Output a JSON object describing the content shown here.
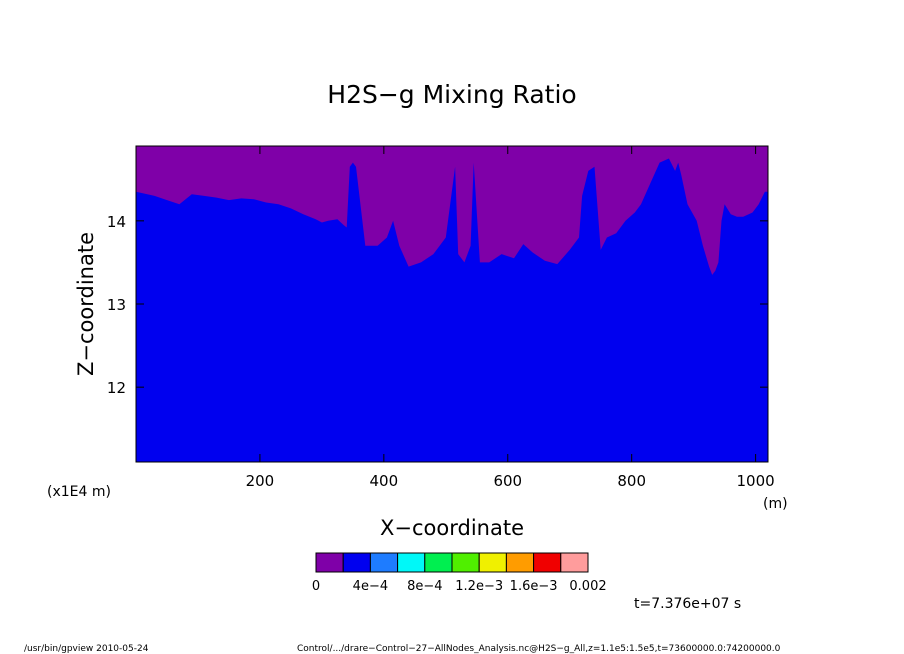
{
  "chart_data": {
    "type": "heatmap",
    "title": "H2S−g Mixing Ratio",
    "xlabel": "X−coordinate",
    "ylabel": "Z−coordinate",
    "x_unit": "(m)",
    "y_unit": "(x1E4 m)",
    "xlim": [
      0,
      1020
    ],
    "ylim": [
      11.1,
      14.9
    ],
    "x_ticks": [
      200,
      400,
      600,
      800,
      1000
    ],
    "y_ticks": [
      12,
      13,
      14
    ],
    "x_tick_labels": [
      "200",
      "400",
      "600",
      "800",
      "1000"
    ],
    "y_tick_labels": [
      "12",
      "13",
      "14"
    ],
    "regions": [
      {
        "name": "0",
        "color": "#7f00a8"
      },
      {
        "name": "4e-4",
        "color": "#0000ef"
      }
    ],
    "boundary": {
      "x": [
        0,
        30,
        50,
        70,
        90,
        110,
        130,
        150,
        170,
        190,
        210,
        230,
        250,
        270,
        290,
        300,
        310,
        325,
        335,
        340,
        345,
        350,
        355,
        370,
        390,
        405,
        415,
        425,
        440,
        460,
        480,
        500,
        515,
        520,
        530,
        540,
        545,
        555,
        570,
        590,
        610,
        625,
        640,
        660,
        680,
        700,
        715,
        720,
        730,
        740,
        750,
        760,
        775,
        790,
        805,
        815,
        830,
        845,
        860,
        870,
        875,
        880,
        890,
        905,
        915,
        925,
        930,
        935,
        940,
        945,
        950,
        960,
        970,
        980,
        995,
        1005,
        1015,
        1020
      ],
      "y": [
        14.35,
        14.3,
        14.25,
        14.2,
        14.32,
        14.3,
        14.28,
        14.25,
        14.27,
        14.26,
        14.22,
        14.2,
        14.15,
        14.08,
        14.02,
        13.98,
        14.0,
        14.02,
        13.95,
        13.92,
        14.65,
        14.7,
        14.65,
        13.7,
        13.7,
        13.8,
        14.0,
        13.7,
        13.45,
        13.5,
        13.6,
        13.8,
        14.65,
        13.6,
        13.5,
        13.7,
        14.7,
        13.5,
        13.5,
        13.6,
        13.55,
        13.72,
        13.62,
        13.52,
        13.48,
        13.65,
        13.8,
        14.3,
        14.6,
        14.65,
        13.65,
        13.8,
        13.85,
        14.0,
        14.1,
        14.2,
        14.45,
        14.7,
        14.75,
        14.6,
        14.7,
        14.55,
        14.2,
        14.0,
        13.7,
        13.45,
        13.35,
        13.4,
        13.5,
        14.0,
        14.2,
        14.08,
        14.05,
        14.05,
        14.1,
        14.2,
        14.35,
        14.35
      ]
    },
    "colorbar": {
      "colors": [
        "#7f00a8",
        "#0000ef",
        "#1e7cff",
        "#00f8f8",
        "#00ef50",
        "#50ef00",
        "#f0f000",
        "#ff9c00",
        "#f00000",
        "#ff9c9c"
      ],
      "labels": [
        "0",
        "4e-4",
        "8e-4",
        "1.2e-3",
        "1.6e-3",
        "0.002"
      ],
      "label_texts": [
        "0",
        "4e−4",
        "8e−4",
        "1.2e−3",
        "1.6e−3",
        "0.002"
      ]
    },
    "time_label": "t=7.376e+07 s"
  },
  "footer": {
    "left": "/usr/bin/gpview  2010-05-24",
    "right": "Control/.../drare−Control−27−AllNodes_Analysis.nc@H2S−g_All,z=1.1e5:1.5e5,t=73600000.0:74200000.0"
  }
}
